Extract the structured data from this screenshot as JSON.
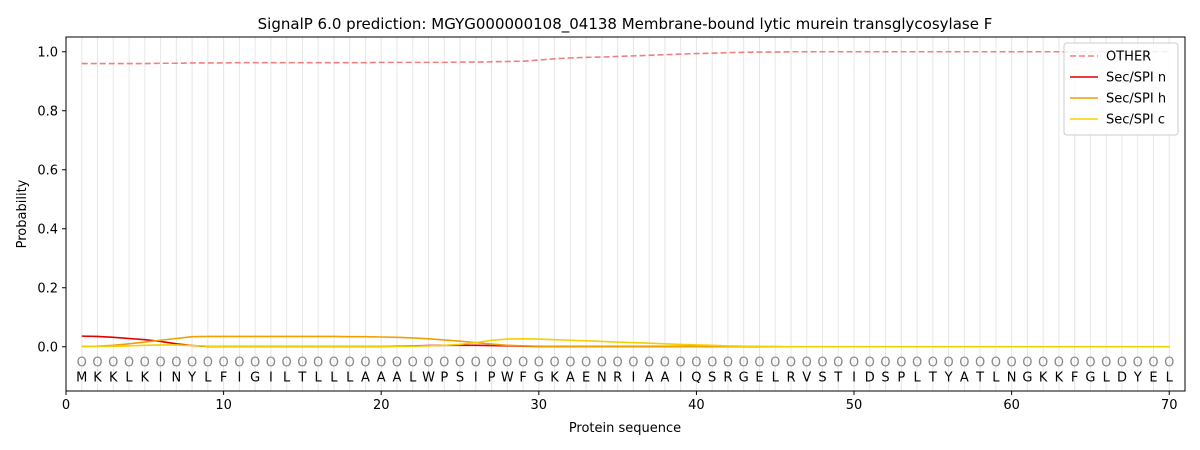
{
  "chart_data": {
    "type": "line",
    "title": "SignalP 6.0 prediction: MGYG000000108_04138 Membrane-bound lytic murein transglycosylase F",
    "xlabel": "Protein sequence",
    "ylabel": "Probability",
    "xlim": [
      0,
      71
    ],
    "ylim": [
      -0.15,
      1.05
    ],
    "xticks": [
      0,
      10,
      20,
      30,
      40,
      50,
      60,
      70
    ],
    "yticks": [
      0.0,
      0.2,
      0.4,
      0.6,
      0.8,
      1.0
    ],
    "ytick_labels": [
      "0.0",
      "0.2",
      "0.4",
      "0.6",
      "0.8",
      "1.0"
    ],
    "sequence": [
      "M",
      "K",
      "K",
      "L",
      "K",
      "I",
      "N",
      "Y",
      "L",
      "F",
      "I",
      "G",
      "I",
      "L",
      "T",
      "L",
      "L",
      "L",
      "A",
      "A",
      "A",
      "L",
      "W",
      "P",
      "S",
      "I",
      "P",
      "W",
      "F",
      "G",
      "K",
      "A",
      "E",
      "N",
      "R",
      "I",
      "A",
      "A",
      "I",
      "Q",
      "S",
      "R",
      "G",
      "E",
      "L",
      "R",
      "V",
      "S",
      "T",
      "I",
      "D",
      "S",
      "P",
      "L",
      "T",
      "Y",
      "A",
      "T",
      "L",
      "N",
      "G",
      "K",
      "K",
      "F",
      "G",
      "L",
      "D",
      "Y",
      "E",
      "L"
    ],
    "state_labels": [
      "O",
      "O",
      "O",
      "O",
      "O",
      "O",
      "O",
      "O",
      "O",
      "O",
      "O",
      "O",
      "O",
      "O",
      "O",
      "O",
      "O",
      "O",
      "O",
      "O",
      "O",
      "O",
      "O",
      "O",
      "O",
      "O",
      "O",
      "O",
      "O",
      "O",
      "O",
      "O",
      "O",
      "O",
      "O",
      "O",
      "O",
      "O",
      "O",
      "O",
      "O",
      "O",
      "O",
      "O",
      "O",
      "O",
      "O",
      "O",
      "O",
      "O",
      "O",
      "O",
      "O",
      "O",
      "O",
      "O",
      "O",
      "O",
      "O",
      "O",
      "O",
      "O",
      "O",
      "O",
      "O",
      "O",
      "O",
      "O",
      "O",
      "O"
    ],
    "legend_position": "top-right",
    "series": [
      {
        "name": "OTHER",
        "color": "#f08080",
        "dash": "dashed",
        "values": [
          0.96,
          0.96,
          0.96,
          0.96,
          0.96,
          0.961,
          0.961,
          0.962,
          0.962,
          0.962,
          0.963,
          0.963,
          0.963,
          0.963,
          0.963,
          0.963,
          0.963,
          0.963,
          0.963,
          0.964,
          0.964,
          0.964,
          0.964,
          0.964,
          0.965,
          0.965,
          0.966,
          0.967,
          0.968,
          0.972,
          0.976,
          0.979,
          0.981,
          0.982,
          0.984,
          0.986,
          0.988,
          0.99,
          0.992,
          0.994,
          0.995,
          0.997,
          0.998,
          0.999,
          0.999,
          1.0,
          1.0,
          1.0,
          1.0,
          1.0,
          1.0,
          1.0,
          1.0,
          1.0,
          1.0,
          1.0,
          1.0,
          1.0,
          1.0,
          1.0,
          1.0,
          1.0,
          1.0,
          1.0,
          1.0,
          1.0,
          1.0,
          1.0,
          1.0,
          1.0
        ]
      },
      {
        "name": "Sec/SPI n",
        "color": "#e00000",
        "dash": "solid",
        "values": [
          0.036,
          0.035,
          0.032,
          0.028,
          0.024,
          0.018,
          0.01,
          0.004,
          0.001,
          0.001,
          0.001,
          0.001,
          0.001,
          0.001,
          0.001,
          0.001,
          0.001,
          0.001,
          0.001,
          0.001,
          0.002,
          0.003,
          0.004,
          0.005,
          0.005,
          0.005,
          0.004,
          0.003,
          0.002,
          0.001,
          0.001,
          0.001,
          0.001,
          0.001,
          0.001,
          0.001,
          0.001,
          0.001,
          0.001,
          0.001,
          0.001,
          0.001,
          0.001,
          0.0,
          0.0,
          0.0,
          0.0,
          0.0,
          0.0,
          0.0,
          0.0,
          0.0,
          0.0,
          0.0,
          0.0,
          0.0,
          0.0,
          0.0,
          0.0,
          0.0,
          0.0,
          0.0,
          0.0,
          0.0,
          0.0,
          0.0,
          0.0,
          0.0,
          0.0,
          0.0
        ]
      },
      {
        "name": "Sec/SPI h",
        "color": "#f0a000",
        "dash": "solid",
        "values": [
          0.001,
          0.002,
          0.005,
          0.01,
          0.016,
          0.022,
          0.028,
          0.034,
          0.035,
          0.035,
          0.035,
          0.035,
          0.035,
          0.035,
          0.035,
          0.035,
          0.035,
          0.034,
          0.034,
          0.033,
          0.032,
          0.03,
          0.027,
          0.023,
          0.019,
          0.014,
          0.009,
          0.005,
          0.003,
          0.002,
          0.001,
          0.001,
          0.001,
          0.001,
          0.001,
          0.001,
          0.001,
          0.001,
          0.001,
          0.001,
          0.001,
          0.001,
          0.001,
          0.001,
          0.0,
          0.0,
          0.0,
          0.0,
          0.0,
          0.0,
          0.0,
          0.0,
          0.0,
          0.0,
          0.0,
          0.0,
          0.0,
          0.0,
          0.0,
          0.0,
          0.0,
          0.0,
          0.0,
          0.0,
          0.0,
          0.0,
          0.0,
          0.0,
          0.0,
          0.0
        ]
      },
      {
        "name": "Sec/SPI c",
        "color": "#f5d000",
        "dash": "solid",
        "values": [
          0.001,
          0.001,
          0.002,
          0.003,
          0.005,
          0.006,
          0.006,
          0.004,
          0.002,
          0.001,
          0.001,
          0.001,
          0.001,
          0.001,
          0.001,
          0.001,
          0.001,
          0.001,
          0.001,
          0.001,
          0.001,
          0.002,
          0.003,
          0.005,
          0.008,
          0.014,
          0.022,
          0.026,
          0.027,
          0.026,
          0.024,
          0.022,
          0.02,
          0.018,
          0.016,
          0.014,
          0.012,
          0.01,
          0.008,
          0.006,
          0.005,
          0.003,
          0.002,
          0.001,
          0.001,
          0.0,
          0.0,
          0.0,
          0.0,
          0.0,
          0.0,
          0.0,
          0.0,
          0.0,
          0.0,
          0.0,
          0.0,
          0.0,
          0.0,
          0.0,
          0.0,
          0.0,
          0.0,
          0.0,
          0.0,
          0.0,
          0.0,
          0.0,
          0.0,
          0.0
        ]
      }
    ]
  }
}
